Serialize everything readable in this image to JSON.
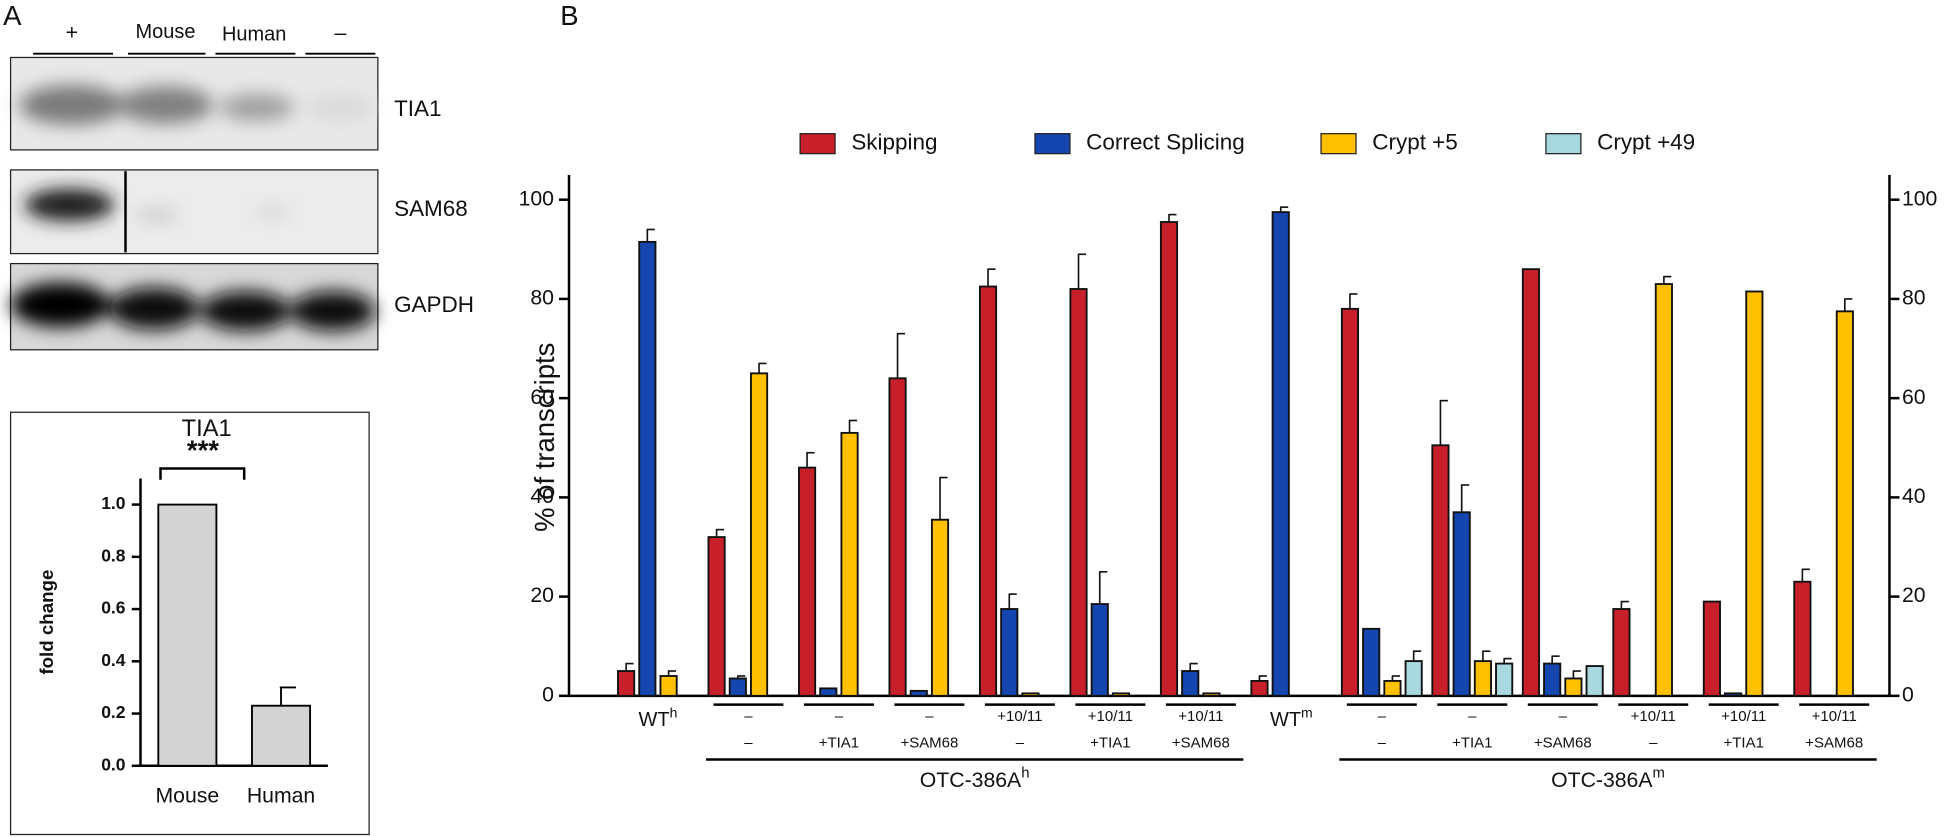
{
  "panel_labels": [
    "A",
    "B"
  ],
  "blot": {
    "lanes": [
      "+",
      "Mouse",
      "Human",
      "–"
    ],
    "rows": [
      "TIA1",
      "SAM68",
      "GAPDH"
    ]
  },
  "chart_data": [
    {
      "type": "bar",
      "title": "TIA1",
      "ylabel": "fold change",
      "categories": [
        "Mouse",
        "Human"
      ],
      "values": [
        1.0,
        0.23
      ],
      "errors": [
        null,
        0.07
      ],
      "color": "#d3d3d3",
      "significance": "***",
      "ylim": [
        0,
        1.1
      ],
      "yticks": [
        {
          "value": 0,
          "label": "0.0"
        },
        {
          "value": 0.2,
          "label": "0.2"
        },
        {
          "value": 0.4,
          "label": "0.4"
        },
        {
          "value": 0.6,
          "label": "0.6"
        },
        {
          "value": 0.8,
          "label": "0.8"
        },
        {
          "value": 1.0,
          "label": "1.0"
        }
      ]
    },
    {
      "type": "grouped_bar",
      "ylabel": "% of transcripts",
      "categories": [
        {
          "label": "WT",
          "sup": "h"
        },
        {
          "label": "–",
          "sub_label": "–"
        },
        {
          "label": "–",
          "sub_label": "+TIA1"
        },
        {
          "label": "–",
          "sub_label": "+SAM68"
        },
        {
          "label": "+10/11",
          "sub_label": "–"
        },
        {
          "label": "+10/11",
          "sub_label": "+TIA1"
        },
        {
          "label": "+10/11",
          "sub_label": "+SAM68"
        },
        {
          "label": "WT",
          "sup": "m"
        },
        {
          "label": "–",
          "sub_label": "–"
        },
        {
          "label": "–",
          "sub_label": "+TIA1"
        },
        {
          "label": "–",
          "sub_label": "+SAM68"
        },
        {
          "label": "+10/11",
          "sub_label": "–"
        },
        {
          "label": "+10/11",
          "sub_label": "+TIA1"
        },
        {
          "label": "+10/11",
          "sub_label": "+SAM68"
        }
      ],
      "group_labels": [
        {
          "label": "OTC-386A",
          "sup": "h"
        },
        {
          "label": "OTC-386A",
          "sup": "m"
        }
      ],
      "series": [
        {
          "name": "Skipping",
          "color": "#c8202a",
          "values": [
            5,
            32,
            46,
            64,
            82.5,
            82,
            95.5,
            3,
            78,
            50.5,
            86,
            17.5,
            19,
            23
          ],
          "errors": [
            1.5,
            1.5,
            3,
            9,
            3.5,
            7,
            1.5,
            1,
            3,
            9,
            null,
            1.5,
            null,
            2.5
          ]
        },
        {
          "name": "Correct Splicing",
          "color": "#1546b0",
          "values": [
            91.5,
            3.5,
            1.5,
            1,
            17.5,
            18.5,
            5,
            97.5,
            13.5,
            37,
            6.5,
            null,
            0.5,
            null
          ],
          "errors": [
            2.5,
            0.5,
            null,
            null,
            3,
            6.5,
            1.5,
            1,
            null,
            5.5,
            1.5,
            null,
            null,
            null
          ]
        },
        {
          "name": "Crypt +5",
          "color": "#ffc000",
          "values": [
            4,
            65,
            53,
            35.5,
            0.5,
            0.5,
            0.5,
            null,
            3,
            7,
            3.5,
            83,
            81.5,
            77.5
          ],
          "errors": [
            1,
            2,
            2.5,
            8.5,
            null,
            null,
            null,
            null,
            1,
            2,
            1.5,
            1.5,
            null,
            2.5
          ]
        },
        {
          "name": "Crypt +49",
          "color": "#a8d8e0",
          "values": [
            null,
            null,
            null,
            null,
            null,
            null,
            null,
            null,
            7,
            6.5,
            6,
            null,
            null,
            null
          ],
          "errors": [
            null,
            null,
            null,
            null,
            null,
            null,
            null,
            null,
            2,
            1,
            null,
            null,
            null,
            null
          ]
        }
      ],
      "ylim": [
        0,
        105
      ],
      "yticks": [
        0,
        20,
        40,
        60,
        80,
        100
      ],
      "y2lim": [
        0,
        105
      ],
      "y2ticks": [
        0,
        20,
        40,
        60,
        80,
        100
      ]
    }
  ]
}
